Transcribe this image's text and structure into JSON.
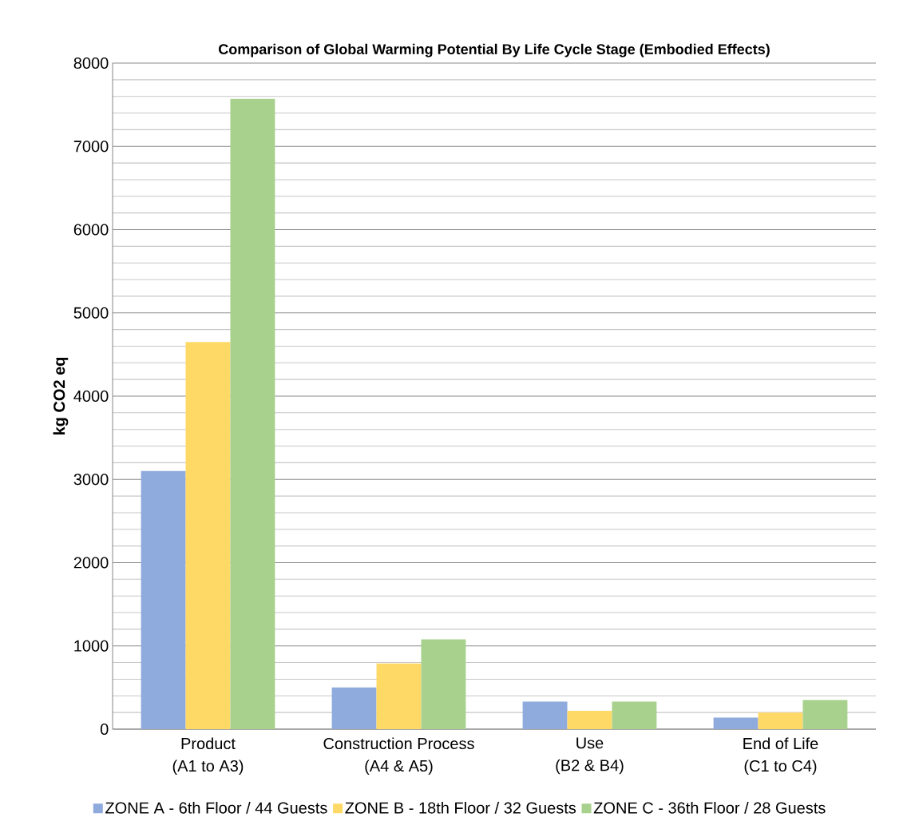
{
  "chart_data": {
    "type": "bar",
    "title": "Comparison of Global Warming Potential By Life Cycle Stage (Embodied Effects)",
    "ylabel": "kg CO2 eq",
    "categories": [
      "Product (A1 to A3)",
      "Construction Process (A4 & A5)",
      "Use (B2 & B4)",
      "End of Life (C1 to C4)"
    ],
    "series": [
      {
        "name": "ZONE A - 6th Floor / 44 Guests",
        "color": "#8faadc",
        "values": [
          3100,
          500,
          330,
          140
        ]
      },
      {
        "name": "ZONE B - 18th Floor / 32 Guests",
        "color": "#ffd966",
        "values": [
          4650,
          790,
          220,
          200
        ]
      },
      {
        "name": "ZONE C - 36th Floor / 28 Guests",
        "color": "#a9d18e",
        "values": [
          7570,
          1080,
          330,
          350
        ]
      }
    ],
    "ylim": [
      0,
      8000
    ],
    "yticks": [
      0,
      1000,
      2000,
      3000,
      4000,
      5000,
      6000,
      7000,
      8000
    ],
    "grid": "y",
    "legend": "bottom"
  }
}
